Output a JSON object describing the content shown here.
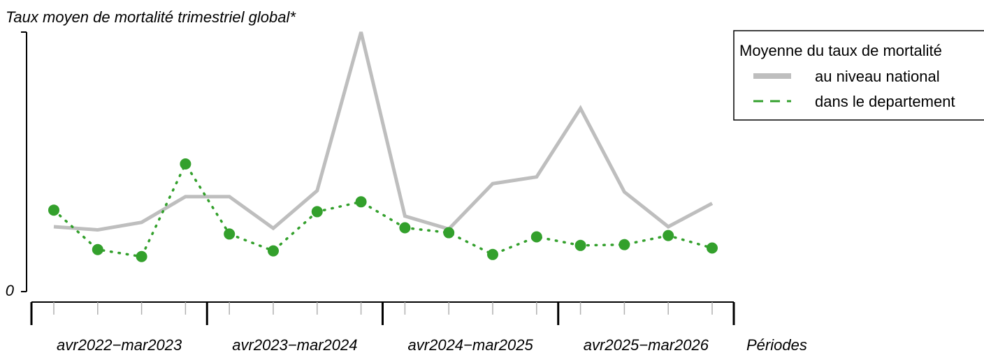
{
  "chart_data": {
    "type": "line",
    "ylabel": "Taux moyen de mortalité trimestriel global*",
    "xlabel": "Périodes",
    "y_tick_labels": [
      "0"
    ],
    "ylim": [
      0,
      100
    ],
    "grid": false,
    "periods": [
      "avr2022−mar2023",
      "avr2023−mar2024",
      "avr2024−mar2025",
      "avr2025−mar2026"
    ],
    "quarters_per_period": 4,
    "legend": {
      "title": "Moyenne du taux de mortalité",
      "position": "top-right",
      "entries": [
        {
          "label": "au niveau national",
          "series": 0
        },
        {
          "label": "dans le departement",
          "series": 1
        }
      ]
    },
    "series": [
      {
        "name": "au niveau national",
        "color": "#bebebe",
        "style": "solid",
        "values": [
          25.0,
          23.8,
          26.7,
          36.6,
          36.6,
          24.4,
          38.9,
          100.0,
          29.1,
          24.1,
          41.6,
          44.2,
          70.6,
          38.4,
          25.0,
          34.0
        ]
      },
      {
        "name": "dans le departement",
        "color": "#33a02c",
        "style": "dotted",
        "markers": true,
        "values": [
          31.4,
          16.2,
          13.5,
          49.2,
          22.2,
          15.7,
          30.8,
          34.6,
          24.6,
          22.7,
          14.3,
          21.1,
          17.8,
          18.1,
          21.6,
          16.8
        ]
      }
    ]
  }
}
